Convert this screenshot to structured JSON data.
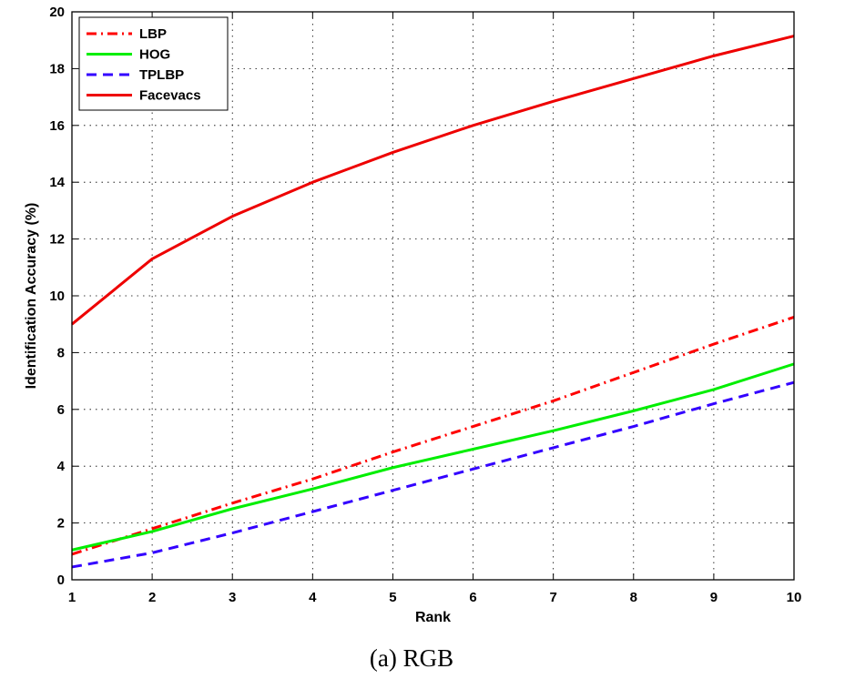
{
  "caption": "(a) RGB",
  "chart_data": {
    "type": "line",
    "title": "",
    "xlabel": "Rank",
    "ylabel": "Identification Accuracy (%)",
    "xlim": [
      1,
      10
    ],
    "ylim": [
      0,
      20
    ],
    "xticks": [
      "1",
      "2",
      "3",
      "4",
      "5",
      "6",
      "7",
      "8",
      "9",
      "10"
    ],
    "yticks": [
      "0",
      "2",
      "4",
      "6",
      "8",
      "10",
      "12",
      "14",
      "16",
      "18",
      "20"
    ],
    "grid": true,
    "legend_position": "top-left",
    "x": [
      1,
      2,
      3,
      4,
      5,
      6,
      7,
      8,
      9,
      10
    ],
    "series": [
      {
        "name": "LBP",
        "color": "#ff0000",
        "style": "dash-dot",
        "values": [
          0.9,
          1.8,
          2.7,
          3.55,
          4.5,
          5.4,
          6.3,
          7.3,
          8.3,
          9.25
        ]
      },
      {
        "name": "HOG",
        "color": "#00ee00",
        "style": "solid",
        "values": [
          1.05,
          1.7,
          2.5,
          3.2,
          3.95,
          4.6,
          5.25,
          5.95,
          6.7,
          7.6
        ]
      },
      {
        "name": "TPLBP",
        "color": "#3300ff",
        "style": "dashed",
        "values": [
          0.45,
          0.95,
          1.65,
          2.4,
          3.15,
          3.9,
          4.65,
          5.4,
          6.2,
          6.95
        ]
      },
      {
        "name": "Facevacs",
        "color": "#ee0000",
        "style": "solid",
        "values": [
          9.0,
          11.3,
          12.8,
          14.0,
          15.05,
          16.0,
          16.85,
          17.65,
          18.45,
          19.15
        ]
      }
    ]
  }
}
